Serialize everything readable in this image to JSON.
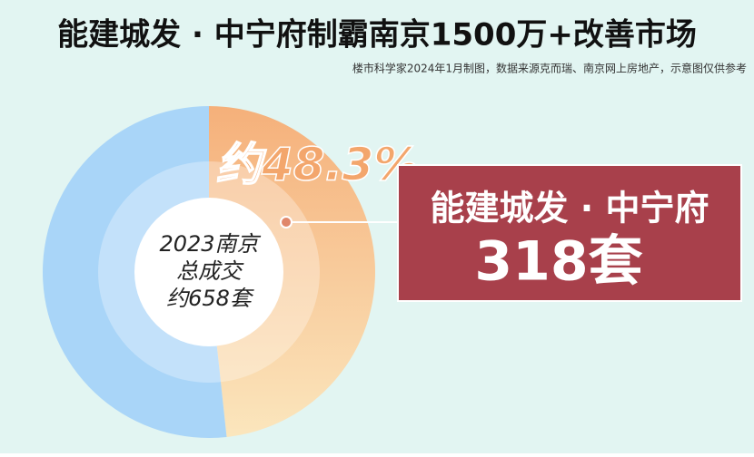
{
  "chart_data": {
    "type": "pie",
    "donut": true,
    "title": "能建城发 · 中宁府制霸南京1500万+改善市场",
    "subtitle": "楼市科学家2024年1月制图，数据来源克而瑞、南京网上房地产，示意图仅供参考",
    "categories": [
      "能建城发 · 中宁府",
      null
    ],
    "values": [
      48.3,
      51.7
    ],
    "value_labels": [
      "约48.3%",
      null
    ],
    "colors": [
      "#f5b07a",
      "#a9d5f8"
    ],
    "center_text": [
      "2023南京",
      "总成交",
      "约658套"
    ],
    "callout": {
      "value": 318,
      "label": "318套"
    }
  }
}
